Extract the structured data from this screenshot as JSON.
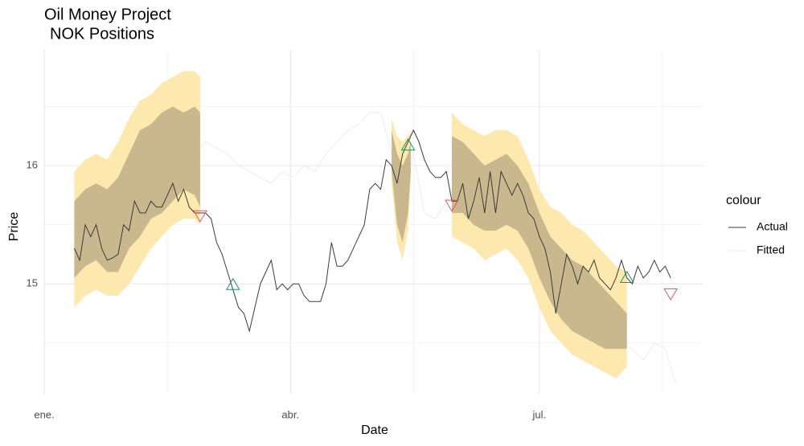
{
  "chart_data": {
    "type": "line",
    "title": [
      "Oil Money Project",
      "NOK Positions"
    ],
    "xlabel": "Date",
    "ylabel": "Price",
    "legend_title": "colour",
    "xlim": [
      0,
      241
    ],
    "ylim": [
      14.07,
      16.98
    ],
    "xticks": [
      {
        "value": 0,
        "label": "ene."
      },
      {
        "value": 90,
        "label": "abr."
      },
      {
        "value": 181,
        "label": "jul."
      }
    ],
    "xminor": [
      45,
      135,
      226
    ],
    "yticks": [
      15,
      16
    ],
    "yminor": [
      14.5,
      15.5,
      16.5
    ],
    "grid": true,
    "band95_color": "#fde8ad",
    "band80_color": "#c9b88e",
    "series": [
      {
        "name": "Actual",
        "color": "#3a3a3a",
        "x": [
          11,
          13,
          15,
          17,
          19,
          21,
          23,
          25,
          27,
          29,
          31,
          33,
          35,
          37,
          39,
          41,
          43,
          45,
          47,
          49,
          51,
          53,
          55,
          57,
          59,
          61,
          63,
          65,
          67,
          69,
          71,
          73,
          75,
          77,
          79,
          81,
          83,
          85,
          87,
          89,
          91,
          93,
          95,
          97,
          99,
          101,
          103,
          105,
          107,
          109,
          111,
          113,
          115,
          117,
          119,
          121,
          123,
          125,
          127,
          129,
          131,
          133,
          135,
          137,
          139,
          141,
          143,
          145,
          147,
          149,
          151,
          153,
          155,
          157,
          159,
          161,
          163,
          165,
          167,
          169,
          171,
          173,
          175,
          177,
          179,
          181,
          183,
          185,
          187,
          189,
          191,
          193,
          195,
          197,
          199,
          201,
          203,
          205,
          207,
          209,
          211,
          213,
          215,
          217,
          219,
          221,
          223,
          225,
          227,
          229
        ],
        "values": [
          15.3,
          15.2,
          15.5,
          15.4,
          15.5,
          15.3,
          15.2,
          15.22,
          15.25,
          15.5,
          15.45,
          15.7,
          15.6,
          15.6,
          15.7,
          15.65,
          15.65,
          15.75,
          15.85,
          15.7,
          15.8,
          15.65,
          15.6,
          15.6,
          15.6,
          15.55,
          15.35,
          15.25,
          15.1,
          14.95,
          14.8,
          14.75,
          14.6,
          14.8,
          15.0,
          15.1,
          15.2,
          14.95,
          15.0,
          14.95,
          15.0,
          15.0,
          14.9,
          14.85,
          14.85,
          14.85,
          15.0,
          15.35,
          15.15,
          15.15,
          15.2,
          15.3,
          15.4,
          15.5,
          15.8,
          15.85,
          15.8,
          16.05,
          16.0,
          15.85,
          16.1,
          16.2,
          16.3,
          16.2,
          16.05,
          15.95,
          15.9,
          15.9,
          15.95,
          15.7,
          15.7,
          15.85,
          15.55,
          15.7,
          15.9,
          15.6,
          15.95,
          15.6,
          15.95,
          15.85,
          15.75,
          15.85,
          15.75,
          15.6,
          15.55,
          15.4,
          15.3,
          15.1,
          14.75,
          15.0,
          15.25,
          15.15,
          15.0,
          15.15,
          15.1,
          15.2,
          15.05,
          15.0,
          14.95,
          15.05,
          15.2,
          15.05,
          15.0,
          15.15,
          15.05,
          15.1,
          15.2,
          15.1,
          15.15,
          15.05
        ]
      },
      {
        "name": "Fitted",
        "color": "#ececec",
        "x": [
          11,
          15,
          19,
          23,
          27,
          31,
          35,
          39,
          43,
          47,
          51,
          55,
          59,
          63,
          67,
          71,
          75,
          79,
          83,
          87,
          91,
          95,
          99,
          103,
          107,
          111,
          115,
          119,
          123,
          127,
          131,
          135,
          139,
          143,
          147,
          151,
          155,
          159,
          163,
          167,
          171,
          175,
          179,
          183,
          187,
          191,
          195,
          199,
          203,
          207,
          211,
          215,
          219,
          223,
          227,
          231
        ],
        "values": [
          15.4,
          15.5,
          15.5,
          15.45,
          15.5,
          15.7,
          15.85,
          15.95,
          16.0,
          16.1,
          16.15,
          16.1,
          16.2,
          16.15,
          16.1,
          16.0,
          15.95,
          15.9,
          15.85,
          15.95,
          15.9,
          16.0,
          15.95,
          16.1,
          16.2,
          16.3,
          16.35,
          16.45,
          16.45,
          16.1,
          15.7,
          16.1,
          15.6,
          15.55,
          15.7,
          15.9,
          15.8,
          15.7,
          15.75,
          15.8,
          15.75,
          15.6,
          15.35,
          15.1,
          14.95,
          14.9,
          14.85,
          14.75,
          14.65,
          14.55,
          14.5,
          14.45,
          14.35,
          14.5,
          14.45,
          14.15
        ]
      }
    ],
    "bands": [
      {
        "x": [
          11,
          15,
          19,
          23,
          27,
          31,
          35,
          39,
          43,
          47,
          51,
          55,
          57
        ],
        "upper95": [
          15.95,
          16.05,
          16.1,
          16.05,
          16.2,
          16.4,
          16.55,
          16.6,
          16.7,
          16.75,
          16.8,
          16.8,
          16.75
        ],
        "upper80": [
          15.7,
          15.8,
          15.85,
          15.8,
          15.9,
          16.1,
          16.3,
          16.35,
          16.45,
          16.5,
          16.45,
          16.5,
          16.45
        ],
        "lower80": [
          15.05,
          15.15,
          15.2,
          15.1,
          15.1,
          15.3,
          15.4,
          15.55,
          15.6,
          15.7,
          15.8,
          15.75,
          15.65
        ],
        "lower95": [
          14.8,
          14.9,
          14.95,
          14.9,
          14.9,
          15.0,
          15.15,
          15.3,
          15.4,
          15.5,
          15.55,
          15.55,
          15.5
        ]
      },
      {
        "x": [
          127,
          129,
          131,
          133,
          134
        ],
        "upper95": [
          16.4,
          16.25,
          16.2,
          16.25,
          16.3
        ],
        "upper80": [
          16.3,
          16.1,
          16.0,
          16.1,
          16.2
        ],
        "lower80": [
          15.95,
          15.5,
          15.35,
          15.6,
          15.95
        ],
        "lower95": [
          15.85,
          15.35,
          15.2,
          15.45,
          15.9
        ]
      },
      {
        "x": [
          149,
          153,
          157,
          161,
          165,
          169,
          173,
          177,
          181,
          185,
          189,
          193,
          197,
          201,
          205,
          209,
          213
        ],
        "upper95": [
          16.45,
          16.35,
          16.3,
          16.25,
          16.3,
          16.3,
          16.25,
          16.05,
          15.8,
          15.65,
          15.6,
          15.5,
          15.45,
          15.35,
          15.25,
          15.15,
          15.1
        ],
        "upper80": [
          16.25,
          16.2,
          16.1,
          16.0,
          16.05,
          16.1,
          16.0,
          15.85,
          15.6,
          15.4,
          15.3,
          15.2,
          15.15,
          15.05,
          14.95,
          14.85,
          14.75
        ],
        "lower80": [
          15.6,
          15.6,
          15.5,
          15.45,
          15.45,
          15.5,
          15.45,
          15.3,
          15.05,
          14.85,
          14.7,
          14.6,
          14.55,
          14.5,
          14.45,
          14.45,
          14.45
        ],
        "lower95": [
          15.4,
          15.35,
          15.3,
          15.2,
          15.25,
          15.3,
          15.2,
          15.05,
          14.8,
          14.6,
          14.5,
          14.4,
          14.35,
          14.3,
          14.25,
          14.2,
          14.3
        ]
      }
    ],
    "buy_signals": {
      "color": "#1a9466",
      "x": [
        69,
        133,
        213
      ],
      "values": [
        14.99,
        16.17,
        15.05
      ]
    },
    "sell_signals": {
      "color": "#e05a5a",
      "x": [
        57,
        149,
        229
      ],
      "values": [
        15.58,
        15.67,
        14.92
      ]
    }
  }
}
